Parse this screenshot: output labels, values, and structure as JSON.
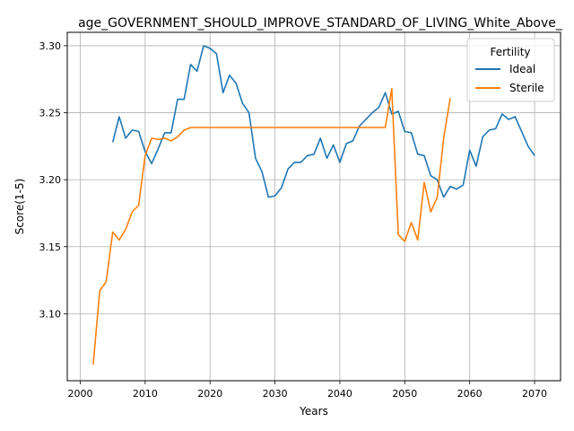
{
  "chart_data": {
    "type": "line",
    "title": "age_GOVERNMENT_SHOULD_IMPROVE_STANDARD_OF_LIVING_White_Above_",
    "xlabel": "Years",
    "ylabel": "Score(1-5)",
    "xlim": [
      1998,
      2074
    ],
    "ylim": [
      3.05,
      3.31
    ],
    "xticks": [
      2000,
      2010,
      2020,
      2030,
      2040,
      2050,
      2060,
      2070
    ],
    "yticks": [
      3.1,
      3.15,
      3.2,
      3.25,
      3.3
    ],
    "grid": true,
    "legend": {
      "title": "Fertility",
      "placement": "top-right"
    },
    "series": [
      {
        "name": "Ideal",
        "color": "#1f77b4",
        "x": [
          2005,
          2006,
          2007,
          2008,
          2009,
          2010,
          2011,
          2012,
          2013,
          2014,
          2015,
          2016,
          2017,
          2018,
          2019,
          2020,
          2021,
          2022,
          2023,
          2024,
          2025,
          2026,
          2027,
          2028,
          2029,
          2030,
          2031,
          2032,
          2033,
          2034,
          2035,
          2036,
          2037,
          2038,
          2039,
          2040,
          2041,
          2042,
          2043,
          2044,
          2045,
          2046,
          2047,
          2048,
          2049,
          2050,
          2051,
          2052,
          2053,
          2054,
          2055,
          2056,
          2057,
          2058,
          2059,
          2060,
          2061,
          2062,
          2063,
          2064,
          2065,
          2066,
          2067,
          2068,
          2069,
          2070
        ],
        "y": [
          3.228,
          3.247,
          3.231,
          3.237,
          3.236,
          3.221,
          3.212,
          3.223,
          3.235,
          3.235,
          3.26,
          3.26,
          3.286,
          3.281,
          3.3,
          3.298,
          3.294,
          3.265,
          3.278,
          3.272,
          3.257,
          3.25,
          3.216,
          3.206,
          3.187,
          3.188,
          3.194,
          3.208,
          3.213,
          3.213,
          3.218,
          3.219,
          3.231,
          3.216,
          3.226,
          3.213,
          3.227,
          3.229,
          3.24,
          3.245,
          3.25,
          3.254,
          3.265,
          3.249,
          3.251,
          3.236,
          3.235,
          3.219,
          3.218,
          3.203,
          3.2,
          3.187,
          3.195,
          3.193,
          3.196,
          3.222,
          3.21,
          3.232,
          3.237,
          3.238,
          3.249,
          3.245,
          3.247,
          3.236,
          3.225,
          3.218
        ]
      },
      {
        "name": "Sterile",
        "color": "#ff7f0e",
        "x": [
          2002,
          2003,
          2004,
          2005,
          2006,
          2007,
          2008,
          2009,
          2010,
          2011,
          2012,
          2013,
          2014,
          2015,
          2016,
          2017,
          2018,
          2019,
          2020,
          2021,
          2022,
          2023,
          2024,
          2025,
          2026,
          2027,
          2028,
          2029,
          2030,
          2031,
          2032,
          2033,
          2034,
          2035,
          2036,
          2037,
          2038,
          2039,
          2040,
          2041,
          2042,
          2043,
          2044,
          2045,
          2046,
          2047,
          2048,
          2049,
          2050,
          2051,
          2052,
          2053,
          2054,
          2055,
          2056,
          2057
        ],
        "y": [
          3.062,
          3.117,
          3.124,
          3.161,
          3.155,
          3.163,
          3.176,
          3.181,
          3.218,
          3.231,
          3.23,
          3.231,
          3.229,
          3.232,
          3.237,
          3.239,
          3.239,
          3.239,
          3.239,
          3.239,
          3.239,
          3.239,
          3.239,
          3.239,
          3.239,
          3.239,
          3.239,
          3.239,
          3.239,
          3.239,
          3.239,
          3.239,
          3.239,
          3.239,
          3.239,
          3.239,
          3.239,
          3.239,
          3.239,
          3.239,
          3.239,
          3.239,
          3.239,
          3.239,
          3.239,
          3.239,
          3.268,
          3.159,
          3.154,
          3.168,
          3.155,
          3.198,
          3.176,
          3.187,
          3.231,
          3.261
        ]
      }
    ]
  }
}
